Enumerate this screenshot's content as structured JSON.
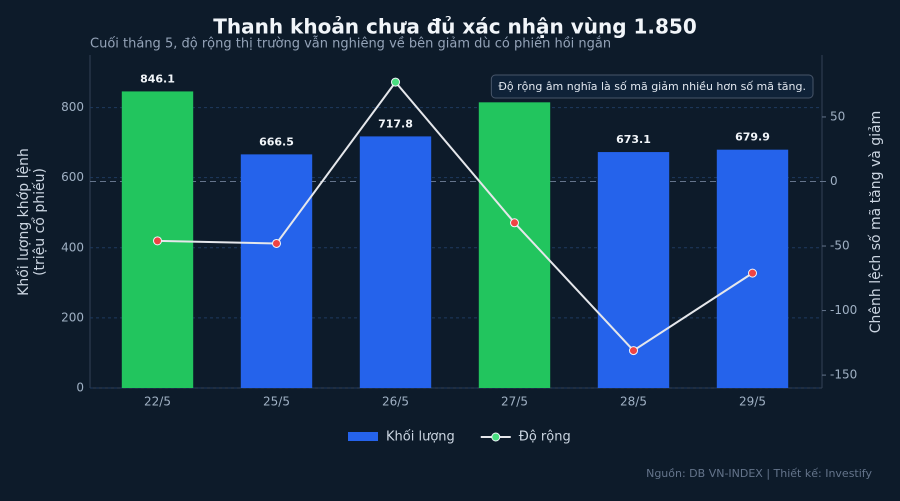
{
  "chart_data": {
    "type": "combo",
    "title": "Thanh khoản chưa đủ xác nhận vùng 1.850",
    "subtitle": "Cuối tháng 5, độ rộng thị trường vẫn nghiêng về bên giảm dù có phiên hồi ngắn",
    "y_label": "Khối lượng khớp lệnh\n(triệu cổ phiếu)",
    "y2_label": "Chênh lệch số mã tăng và giảm",
    "annotation": "Độ rộng âm nghĩa là số mã giảm nhiều hơn số mã tăng.",
    "source": "Nguồn: DB VN-INDEX | Thiết kế: Investify",
    "categories": [
      "22/5",
      "25/5",
      "26/5",
      "27/5",
      "28/5",
      "29/5"
    ],
    "series": [
      {
        "name": "Khối lượng",
        "type": "bar",
        "color": "#2563eb",
        "colors": [
          "#22c55e",
          "#2563eb",
          "#2563eb",
          "#22c55e",
          "#2563eb",
          "#2563eb"
        ],
        "values": [
          846.1,
          666.5,
          717.8,
          815,
          673.1,
          679.9
        ],
        "value_labels": [
          "846.1",
          "666.5",
          "717.8",
          null,
          "673.1",
          "679.9"
        ]
      },
      {
        "name": "Độ rộng",
        "type": "line",
        "axis": "y2",
        "color": "#e5e7eb",
        "positive_color": "#4ade80",
        "negative_color": "#ef4444",
        "values": [
          -46,
          -48,
          77,
          -32,
          -131,
          -71
        ]
      }
    ],
    "ylim": [
      0,
      950
    ],
    "yticks": [
      0,
      200,
      400,
      600,
      800
    ],
    "y2lim": [
      -160,
      98
    ],
    "y2ticks": [
      -150,
      -100,
      -50,
      0,
      50
    ],
    "grid": true,
    "legend": "bottom"
  }
}
